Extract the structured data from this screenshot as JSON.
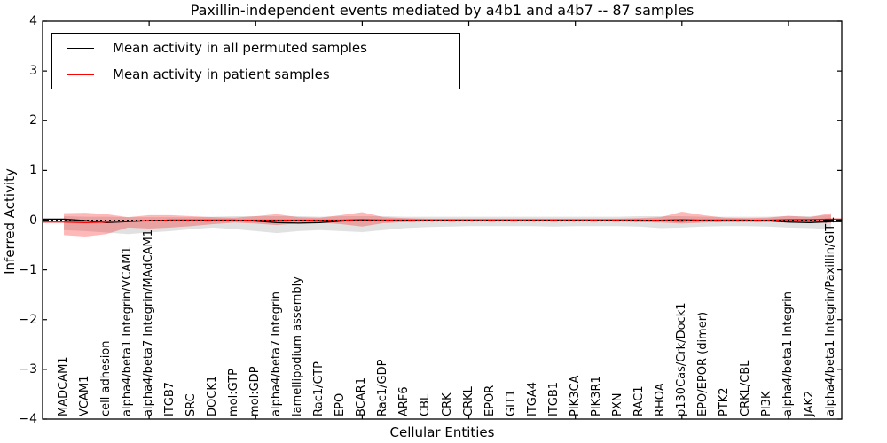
{
  "chart_data": {
    "type": "line",
    "title": "Paxillin-independent events mediated by a4b1 and a4b7 -- 87 samples",
    "xlabel": "Cellular Entities",
    "ylabel": "Inferred Activity",
    "ylim": [
      -4,
      4
    ],
    "yticks": [
      -4,
      -3,
      -2,
      -1,
      0,
      1,
      2,
      3,
      4
    ],
    "xlim": [
      0,
      37.5
    ],
    "xticks": [
      5,
      10,
      15,
      20,
      25,
      30,
      35
    ],
    "grid": false,
    "legend_position": "upper left",
    "categories": [
      "MADCAM1",
      "VCAM1",
      "cell adhesion",
      "alpha4/beta1 Integrin/VCAM1",
      "alpha4/beta7 Integrin/MAdCAM1",
      "ITGB7",
      "SRC",
      "DOCK1",
      "mol:GTP",
      "mol:GDP",
      "alpha4/beta7 Integrin",
      "lamellipodium assembly",
      "Rac1/GTP",
      "EPO",
      "BCAR1",
      "Rac1/GDP",
      "ARF6",
      "CBL",
      "CRK",
      "CRKL",
      "EPOR",
      "GIT1",
      "ITGA4",
      "ITGB1",
      "PIK3CA",
      "PIK3R1",
      "PXN",
      "RAC1",
      "RHOA",
      "p130Cas/Crk/Dock1",
      "EPO/EPOR (dimer)",
      "PTK2",
      "CRKL/CBL",
      "PI3K",
      "alpha4/beta1 Integrin",
      "JAK2",
      "alpha4/beta1 Integrin/Paxillin/GIT1"
    ],
    "series": [
      {
        "name": "Mean activity in all permuted samples",
        "color": "#000000",
        "values": [
          0.02,
          -0.01,
          -0.05,
          -0.03,
          -0.01,
          0,
          0,
          0,
          0,
          -0.02,
          -0.05,
          -0.06,
          -0.05,
          -0.02,
          0,
          0,
          0,
          0,
          0,
          0,
          0,
          0,
          0,
          0,
          0,
          0,
          0,
          0,
          -0.01,
          -0.02,
          0,
          0,
          0,
          -0.01,
          -0.04,
          -0.05,
          -0.03
        ]
      },
      {
        "name": "Mean activity in patient samples",
        "color": "#ff0000",
        "values": [
          -0.04,
          -0.05,
          -0.04,
          -0.02,
          -0.01,
          0,
          0,
          0,
          0,
          0,
          0,
          0,
          0,
          0,
          0.01,
          0,
          0,
          0,
          0,
          0,
          0,
          0,
          0,
          0,
          0,
          0,
          0,
          0,
          0,
          0.01,
          0,
          0,
          0,
          0,
          0.01,
          0.01,
          0.02
        ]
      }
    ],
    "bands": [
      {
        "name": "permuted samples range",
        "color": "rgba(120,120,120,0.22)",
        "upper": [
          0.08,
          0.07,
          0.07,
          0.06,
          0.06,
          0.06,
          0.06,
          0.07,
          0.08,
          0.08,
          0.08,
          0.08,
          0.07,
          0.08,
          0.08,
          0.08,
          0.07,
          0.07,
          0.07,
          0.07,
          0.07,
          0.07,
          0.07,
          0.07,
          0.07,
          0.07,
          0.07,
          0.08,
          0.08,
          0.08,
          0.07,
          0.07,
          0.07,
          0.07,
          0.08,
          0.08,
          0.1
        ],
        "lower": [
          -0.2,
          -0.22,
          -0.25,
          -0.28,
          -0.25,
          -0.22,
          -0.18,
          -0.15,
          -0.18,
          -0.22,
          -0.26,
          -0.22,
          -0.2,
          -0.22,
          -0.24,
          -0.2,
          -0.16,
          -0.14,
          -0.13,
          -0.12,
          -0.12,
          -0.12,
          -0.12,
          -0.13,
          -0.12,
          -0.12,
          -0.12,
          -0.13,
          -0.16,
          -0.15,
          -0.13,
          -0.12,
          -0.12,
          -0.13,
          -0.15,
          -0.16,
          -0.18
        ]
      },
      {
        "name": "patient samples range",
        "color": "rgba(255,0,0,0.28)",
        "upper": [
          0.14,
          0.15,
          0.12,
          0.06,
          0.1,
          0.1,
          0.08,
          0.06,
          0.05,
          0.08,
          0.12,
          0.06,
          0.05,
          0.1,
          0.16,
          0.06,
          0.04,
          0.03,
          0.03,
          0.03,
          0.03,
          0.03,
          0.03,
          0.03,
          0.03,
          0.03,
          0.03,
          0.04,
          0.06,
          0.17,
          0.1,
          0.05,
          0.04,
          0.05,
          0.09,
          0.06,
          0.14
        ],
        "lower": [
          -0.3,
          -0.33,
          -0.28,
          -0.15,
          -0.17,
          -0.15,
          -0.12,
          -0.08,
          -0.05,
          -0.07,
          -0.1,
          -0.06,
          -0.05,
          -0.08,
          -0.13,
          -0.06,
          -0.04,
          -0.03,
          -0.03,
          -0.03,
          -0.03,
          -0.03,
          -0.03,
          -0.03,
          -0.03,
          -0.03,
          -0.03,
          -0.04,
          -0.05,
          -0.07,
          -0.05,
          -0.04,
          -0.04,
          -0.04,
          -0.05,
          -0.05,
          -0.06
        ]
      }
    ],
    "reference_line": {
      "y": 0,
      "style": "dashed",
      "color": "#000000"
    }
  }
}
